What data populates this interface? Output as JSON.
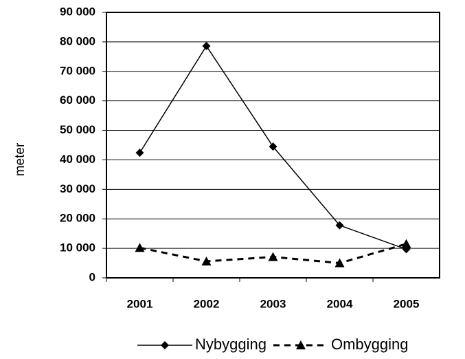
{
  "chart_data": {
    "type": "line",
    "y_label": "meter",
    "categories": [
      "2001",
      "2002",
      "2003",
      "2004",
      "2005"
    ],
    "series": [
      {
        "name": "Nybygging",
        "color": "#000000",
        "dash": "solid",
        "marker": "diamond",
        "values": [
          42400,
          78600,
          44500,
          17800,
          9700
        ]
      },
      {
        "name": "Ombygging",
        "color": "#000000",
        "dash": "dashed",
        "marker": "triangle",
        "values": [
          10200,
          5600,
          7100,
          5000,
          11500
        ]
      }
    ],
    "ylim": [
      0,
      90000
    ],
    "yticks": [
      {
        "value": 0,
        "label": "0"
      },
      {
        "value": 10000,
        "label": "10 000"
      },
      {
        "value": 20000,
        "label": "20 000"
      },
      {
        "value": 30000,
        "label": "30 000"
      },
      {
        "value": 40000,
        "label": "40 000"
      },
      {
        "value": 50000,
        "label": "50 000"
      },
      {
        "value": 60000,
        "label": "60 000"
      },
      {
        "value": 70000,
        "label": "70 000"
      },
      {
        "value": 80000,
        "label": "80 000"
      },
      {
        "value": 90000,
        "label": "90 000"
      }
    ],
    "grid": true,
    "legend": "bottom"
  }
}
